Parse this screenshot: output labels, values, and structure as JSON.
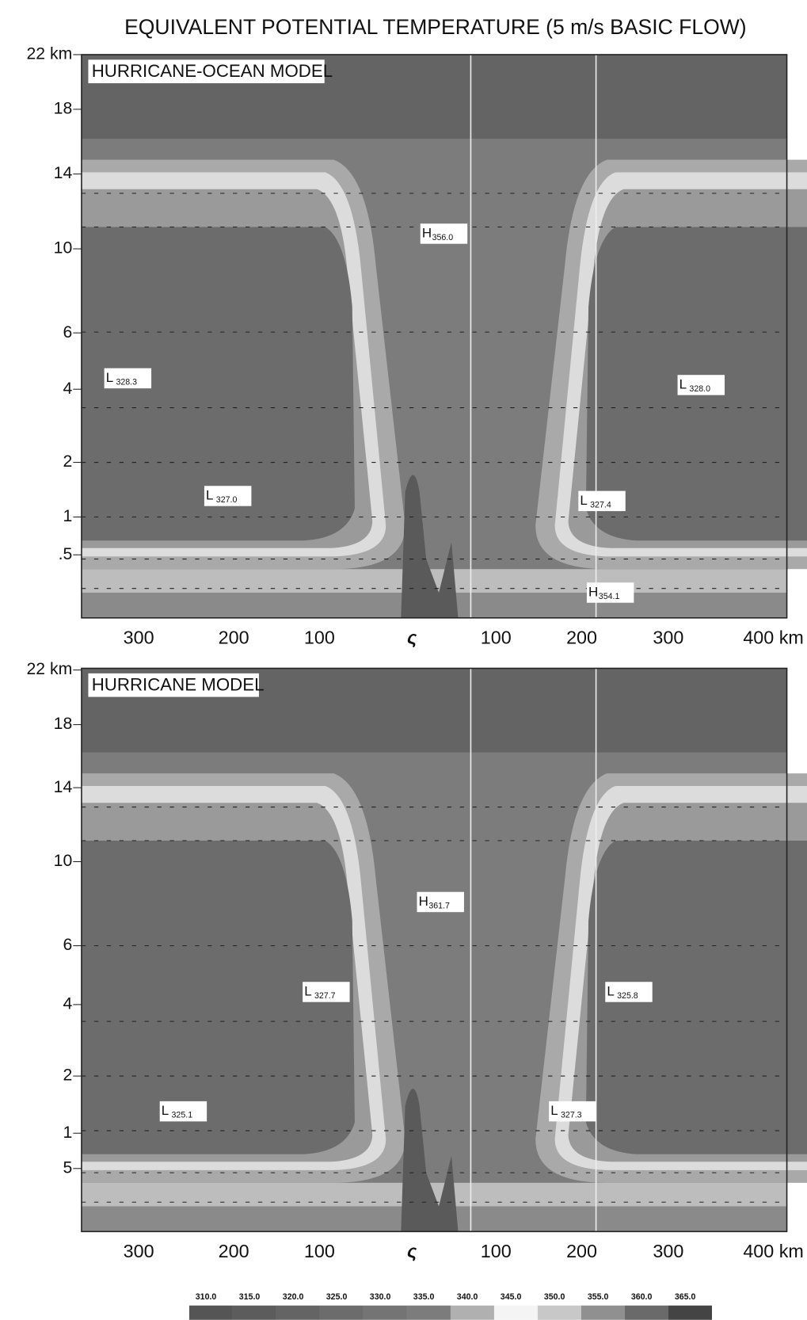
{
  "title": "EQUIVALENT POTENTIAL TEMPERATURE (5 m/s BASIC FLOW)",
  "panels": [
    {
      "label": "HURRICANE-OCEAN MODEL",
      "y_labels": [
        "22 km",
        "18",
        "14",
        "10",
        "6",
        "4",
        "2",
        "1",
        ".5"
      ],
      "x_labels": [
        "300",
        "200",
        "100",
        "ς",
        "100",
        "200",
        "300",
        "400 km"
      ],
      "extrema": [
        {
          "letter": "H",
          "value": "356.0"
        },
        {
          "letter": "L",
          "value": "328.3"
        },
        {
          "letter": "L",
          "value": "328.0"
        },
        {
          "letter": "L",
          "value": "327.0"
        },
        {
          "letter": "L",
          "value": "327.4"
        },
        {
          "letter": "H",
          "value": "354.1"
        }
      ]
    },
    {
      "label": "HURRICANE MODEL",
      "y_labels": [
        "22 km",
        "18",
        "14",
        "10",
        "6",
        "4",
        "2",
        "1",
        "5"
      ],
      "x_labels": [
        "300",
        "200",
        "100",
        "ς",
        "100",
        "200",
        "300",
        "400 km"
      ],
      "extrema": [
        {
          "letter": "H",
          "value": "361.7"
        },
        {
          "letter": "L",
          "value": "327.7"
        },
        {
          "letter": "L",
          "value": "325.8"
        },
        {
          "letter": "L",
          "value": "325.1"
        },
        {
          "letter": "L",
          "value": "327.3"
        }
      ]
    }
  ],
  "colorbar_labels": [
    "310.0",
    "315.0",
    "320.0",
    "325.0",
    "330.0",
    "335.0",
    "340.0",
    "345.0",
    "350.0",
    "355.0",
    "360.0",
    "365.0"
  ]
}
